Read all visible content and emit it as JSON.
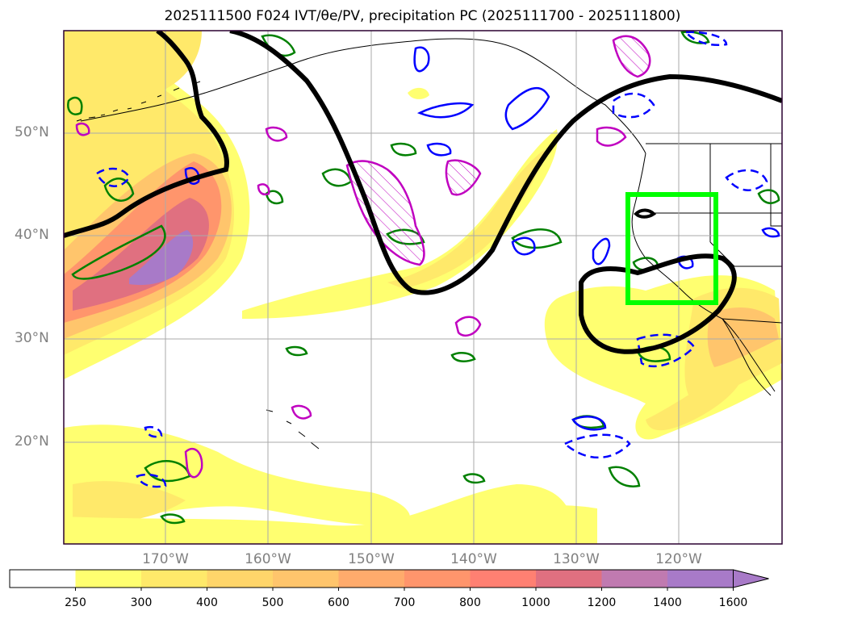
{
  "title": "2025111500 F024 IVT/θe/PV, precipitation PC (2025111700 - 2025111800)",
  "map": {
    "lat_labels": [
      "50°N",
      "40°N",
      "30°N",
      "20°N"
    ],
    "lon_labels": [
      "170°W",
      "160°W",
      "150°W",
      "140°W",
      "130°W",
      "120°W"
    ],
    "box_color": "#00ff00",
    "contour_colors": {
      "theta_e": "#000000",
      "pv_positive": "#0000ff",
      "pv_green": "#008000",
      "pv_magenta": "#c000c0"
    }
  },
  "colorbar": {
    "labels": [
      "250",
      "300",
      "400",
      "500",
      "600",
      "700",
      "800",
      "1000",
      "1200",
      "1400",
      "1600"
    ],
    "colors": [
      "#ffffff",
      "#ffff70",
      "#ffe96a",
      "#ffd56a",
      "#ffc56c",
      "#ffab6c",
      "#ff956c",
      "#ff8072",
      "#e07080",
      "#c07ab0",
      "#a87ac8"
    ]
  }
}
